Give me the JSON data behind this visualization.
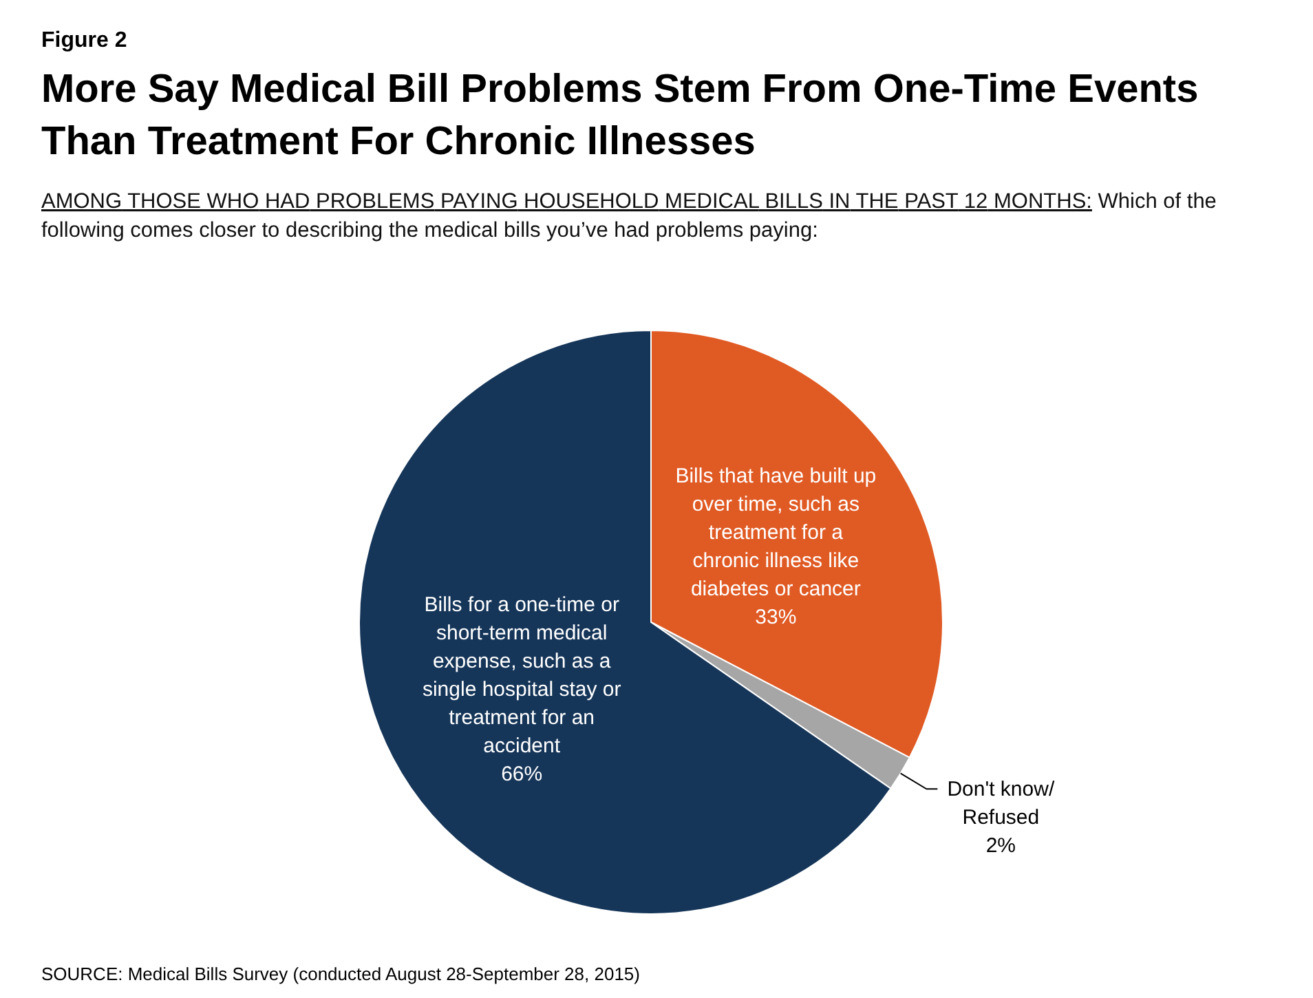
{
  "chart_data": {
    "type": "pie",
    "title": "More Say Medical Bill Problems Stem From One-Time Events Than Treatment For Chronic Illnesses",
    "subtitle": "AMONG THOSE WHO HAD PROBLEMS PAYING HOUSEHOLD MEDICAL BILLS IN THE PAST 12 MONTHS: Which of the following comes closer to describing the medical bills you’ve had problems paying:",
    "categories": [
      "Bills that have built up over time, such as treatment for a chronic illness like diabetes or cancer",
      "Don't know/ Refused",
      "Bills for a one-time or short-term medical expense, such as a single hospital stay or treatment for an accident"
    ],
    "values": [
      33,
      2,
      66
    ],
    "colors": [
      "#e05a24",
      "#a6a6a6",
      "#163659"
    ],
    "value_labels": [
      "33%",
      "2%",
      "66%"
    ],
    "annotations": [
      "Figure 2",
      "SOURCE: Medical Bills Survey (conducted August 28-September 28, 2015)"
    ]
  }
}
